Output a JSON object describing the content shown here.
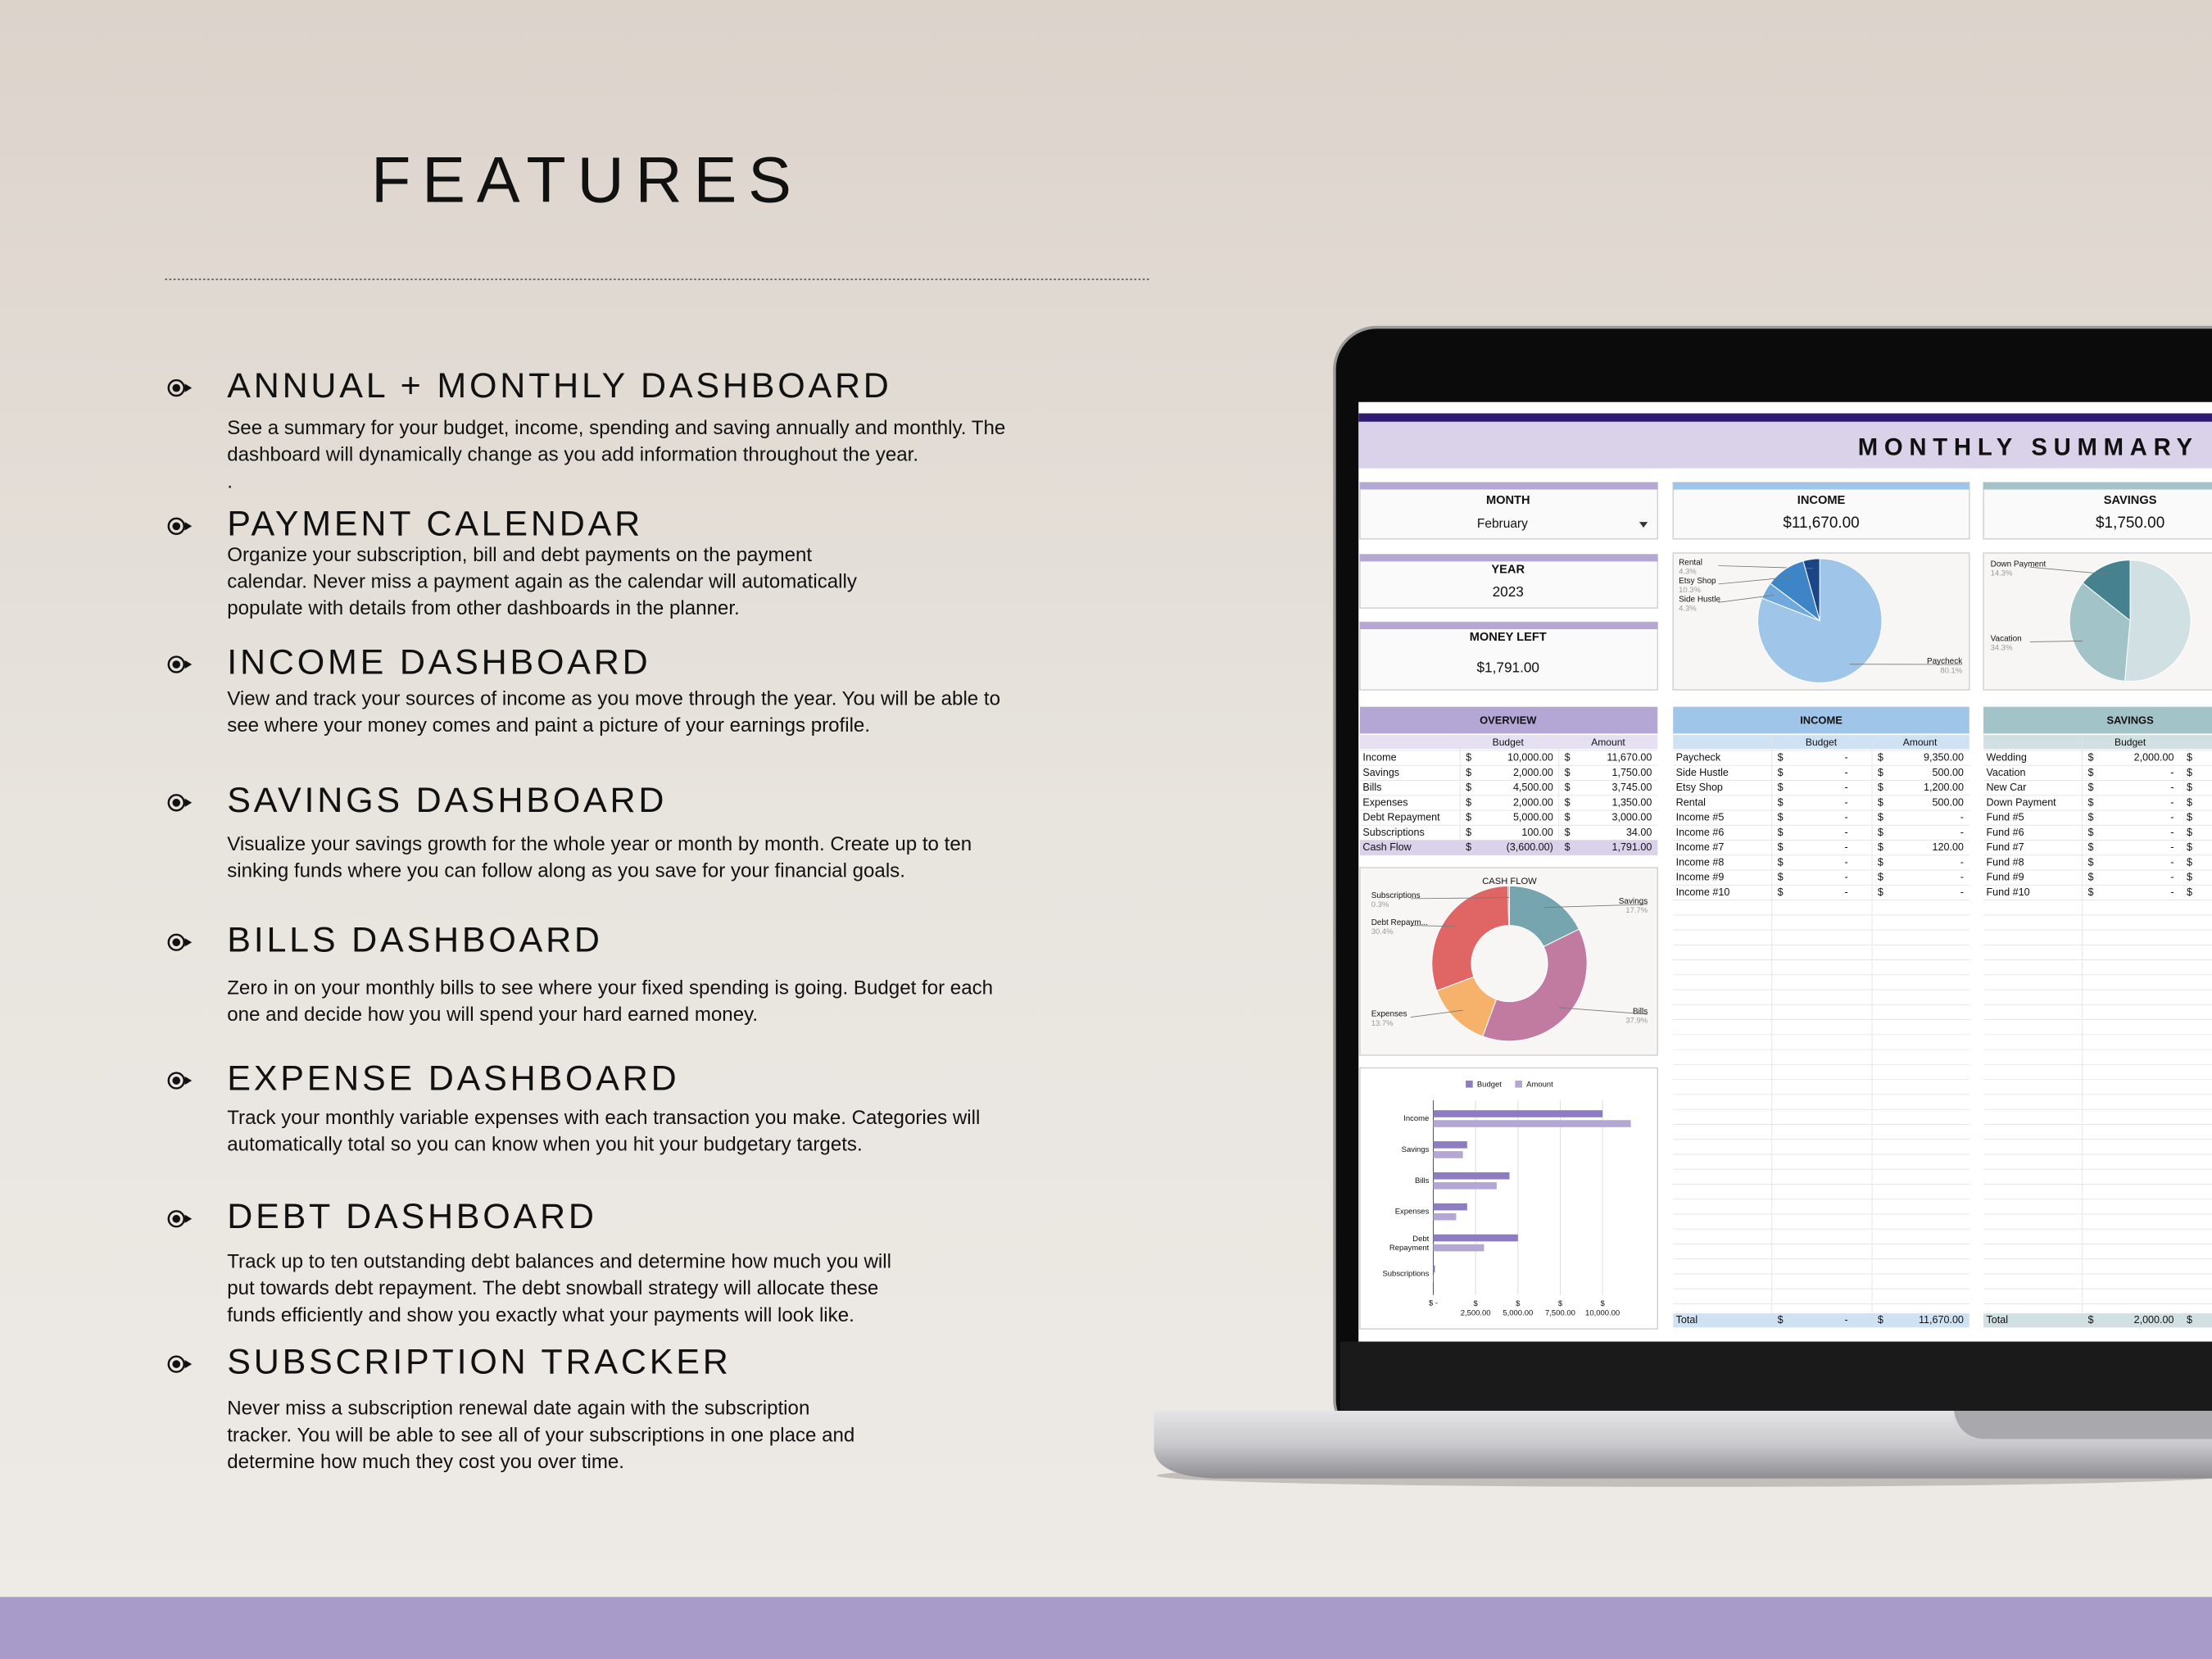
{
  "header": {
    "title": "FEATURES"
  },
  "features": [
    {
      "title": "ANNUAL + MONTHLY DASHBOARD",
      "lines": [
        "See a summary for your budget, income, spending and saving annually and monthly. The",
        "dashboard will dynamically change as you add information throughout the year.",
        "."
      ]
    },
    {
      "title": "PAYMENT CALENDAR",
      "lines": [
        "Organize your subscription, bill and debt payments on the payment",
        "calendar. Never miss a payment again as the calendar will automatically",
        "populate with details from other dashboards in the planner."
      ]
    },
    {
      "title": "INCOME DASHBOARD",
      "lines": [
        "View and track your sources of income as you move through the year. You will be able to",
        "see where your money comes and paint a picture of your earnings profile."
      ]
    },
    {
      "title": "SAVINGS DASHBOARD",
      "lines": [
        "Visualize your savings growth for the whole year or month by month. Create up to ten",
        "sinking funds where you can follow along as you save for your financial goals."
      ]
    },
    {
      "title": "BILLS DASHBOARD",
      "lines": [
        "Zero in on your monthly bills to see where your fixed spending is going. Budget for each",
        "one and decide how you will spend your hard earned money."
      ]
    },
    {
      "title": "EXPENSE DASHBOARD",
      "lines": [
        "Track your monthly variable expenses with each transaction you make. Categories will",
        "automatically total so you can know when you hit your budgetary targets."
      ]
    },
    {
      "title": "DEBT DASHBOARD",
      "lines": [
        "Track up to ten outstanding debt balances and determine how much you will",
        "put towards debt repayment. The debt snowball strategy will allocate these",
        "funds efficiently and show you exactly what your payments will look like."
      ]
    },
    {
      "title": "SUBSCRIPTION TRACKER",
      "lines": [
        "Never miss a subscription renewal date again with the subscription",
        "tracker. You will be able to see all of your subscriptions in one place and",
        "determine how much they cost you over time."
      ]
    }
  ],
  "screen": {
    "title": "MONTHLY SUMMARY",
    "currency": "$",
    "month": {
      "label": "MONTH",
      "value": "February"
    },
    "year": {
      "label": "YEAR",
      "value": "2023"
    },
    "money_left": {
      "label": "MONEY LEFT",
      "value": "$1,791.00"
    },
    "income_card": {
      "label": "INCOME",
      "value": "$11,670.00"
    },
    "savings_card": {
      "label": "SAVINGS",
      "value": "$1,750.00"
    },
    "income_pie": {
      "type": "pie",
      "categories": [
        "Rental",
        "Etsy Shop",
        "Side Hustle",
        "Paycheck"
      ],
      "values": [
        4.3,
        10.3,
        4.3,
        80.1
      ],
      "value_labels": [
        "4.3%",
        "10.3%",
        "4.3%",
        "80.1%"
      ],
      "colors": [
        "#1c4587",
        "#3d85c6",
        "#6fa8dc",
        "#9fc5e8"
      ]
    },
    "savings_pie": {
      "type": "pie",
      "categories": [
        "Down Payment",
        "Vacation",
        null
      ],
      "values": [
        14.3,
        34.3,
        51.4
      ],
      "value_labels": [
        "14.3%",
        "34.3%",
        null
      ],
      "colors": [
        "#45818e",
        "#a2c4c9",
        "#d0e0e3"
      ]
    },
    "cash_flow": {
      "type": "donut",
      "title": "CASH FLOW",
      "categories": [
        "Savings",
        "Bills",
        "Expenses",
        "Debt Repaym...",
        "Subscriptions"
      ],
      "values": [
        17.7,
        37.9,
        13.7,
        30.4,
        0.3
      ],
      "value_labels": [
        "17.7%",
        "37.9%",
        "13.7%",
        "30.4%",
        "0.3%"
      ],
      "colors": [
        "#76a5af",
        "#c27ba0",
        "#f6b26b",
        "#e06666",
        "#8e7cc3"
      ]
    },
    "overview_bars": {
      "type": "bar",
      "orientation": "horizontal",
      "categories": [
        "Income",
        "Savings",
        "Bills",
        "Expenses",
        "Debt Repayment",
        "Subscriptions"
      ],
      "series": [
        {
          "name": "Budget",
          "color": "#8e7cc3",
          "values": [
            10000,
            2000,
            4500,
            2000,
            5000,
            100
          ]
        },
        {
          "name": "Amount",
          "color": "#b4a7d6",
          "values": [
            11670,
            1750,
            3745,
            1350,
            3000,
            34
          ]
        }
      ],
      "xlim": [
        0,
        12500
      ],
      "xticks": [
        {
          "value": 0,
          "label": "$ -"
        },
        {
          "value": 2500,
          "label": "$ 2,500.00"
        },
        {
          "value": 5000,
          "label": "$ 5,000.00"
        },
        {
          "value": 7500,
          "label": "$ 7,500.00"
        },
        {
          "value": 10000,
          "label": "$ 10,000.00"
        }
      ],
      "grid": true
    },
    "overview": {
      "title": "OVERVIEW",
      "columns": [
        "Budget",
        "Amount"
      ],
      "rows": [
        [
          "Income",
          "10,000.00",
          "11,670.00"
        ],
        [
          "Savings",
          "2,000.00",
          "1,750.00"
        ],
        [
          "Bills",
          "4,500.00",
          "3,745.00"
        ],
        [
          "Expenses",
          "2,000.00",
          "1,350.00"
        ],
        [
          "Debt Repayment",
          "5,000.00",
          "3,000.00"
        ],
        [
          "Subscriptions",
          "100.00",
          "34.00"
        ],
        [
          "Cash Flow",
          "(3,600.00)",
          "1,791.00"
        ]
      ]
    },
    "income": {
      "title": "INCOME",
      "columns": [
        "Budget",
        "Amount"
      ],
      "rows": [
        [
          "Paycheck",
          "-",
          "9,350.00"
        ],
        [
          "Side Hustle",
          "-",
          "500.00"
        ],
        [
          "Etsy Shop",
          "-",
          "1,200.00"
        ],
        [
          "Rental",
          "-",
          "500.00"
        ],
        [
          "Income #5",
          "-",
          "-"
        ],
        [
          "Income #6",
          "-",
          "-"
        ],
        [
          "Income #7",
          "-",
          "120.00"
        ],
        [
          "Income #8",
          "-",
          "-"
        ],
        [
          "Income #9",
          "-",
          "-"
        ],
        [
          "Income #10",
          "-",
          "-"
        ]
      ],
      "total": [
        "Total",
        "-",
        "11,670.00"
      ]
    },
    "savings": {
      "title": "SAVINGS",
      "columns": [
        "Budget"
      ],
      "rows": [
        [
          "Wedding",
          "2,000.00"
        ],
        [
          "Vacation",
          "-"
        ],
        [
          "New Car",
          "-"
        ],
        [
          "Down Payment",
          "-"
        ],
        [
          "Fund #5",
          "-"
        ],
        [
          "Fund #6",
          "-"
        ],
        [
          "Fund #7",
          "-"
        ],
        [
          "Fund #8",
          "-"
        ],
        [
          "Fund #9",
          "-"
        ],
        [
          "Fund #10",
          "-"
        ]
      ],
      "total": [
        "Total",
        "2,000.00"
      ]
    }
  }
}
